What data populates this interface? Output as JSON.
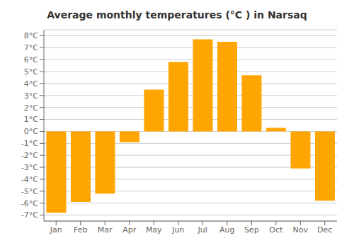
{
  "chart_data": {
    "type": "bar",
    "title": "Average monthly temperatures (°C ) in Narsaq",
    "categories": [
      "Jan",
      "Feb",
      "Mar",
      "Apr",
      "May",
      "Jun",
      "Jul",
      "Aug",
      "Sep",
      "Oct",
      "Nov",
      "Dec"
    ],
    "values": [
      -6.8,
      -5.9,
      -5.2,
      -0.9,
      3.5,
      5.8,
      7.7,
      7.5,
      4.7,
      0.3,
      -3.1,
      -5.8
    ],
    "color": "#FFA500",
    "ylim": [
      -7.5,
      8.5
    ],
    "yticks": [
      {
        "value": -7,
        "label": "-7°C"
      },
      {
        "value": -6,
        "label": "-6°C"
      },
      {
        "value": -5,
        "label": "-5°C"
      },
      {
        "value": -4,
        "label": "-4°C"
      },
      {
        "value": -3,
        "label": "-3°C"
      },
      {
        "value": -2,
        "label": "-2°C"
      },
      {
        "value": -1,
        "label": "-1°C"
      },
      {
        "value": 0,
        "label": "0°C"
      },
      {
        "value": 1,
        "label": "1°C"
      },
      {
        "value": 2,
        "label": "2°C"
      },
      {
        "value": 3,
        "label": "3°C"
      },
      {
        "value": 4,
        "label": "4°C"
      },
      {
        "value": 5,
        "label": "5°C"
      },
      {
        "value": 6,
        "label": "6°C"
      },
      {
        "value": 7,
        "label": "7°C"
      },
      {
        "value": 8,
        "label": "8°C"
      }
    ],
    "grid": true
  }
}
